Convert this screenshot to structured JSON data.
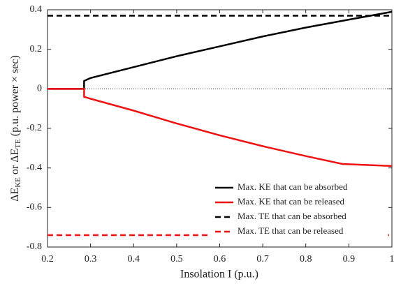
{
  "chart_data": {
    "type": "line",
    "xlabel": "Insolation I (p.u.)",
    "ylabel": [
      "ΔE",
      "KE",
      " or ΔE",
      "TE",
      " (p.u. power × sec)"
    ],
    "xlim": [
      0.2,
      1
    ],
    "ylim": [
      -0.8,
      0.4
    ],
    "xticks": [
      0.2,
      0.3,
      0.4,
      0.5,
      0.6,
      0.7,
      0.8,
      0.9,
      1
    ],
    "yticks": [
      0.4,
      0.2,
      0,
      -0.2,
      -0.4,
      -0.6,
      -0.8
    ],
    "reference_line": {
      "value": 0,
      "style": "dotted"
    },
    "legend": "lower right",
    "series": [
      {
        "name": "Max. KE that can be absorbed",
        "color": "#000000",
        "dash": false,
        "x": [
          0.2,
          0.285,
          0.285,
          0.3,
          0.4,
          0.5,
          0.6,
          0.7,
          0.8,
          0.9,
          1
        ],
        "values": [
          0,
          0,
          0.04,
          0.055,
          0.11,
          0.165,
          0.215,
          0.265,
          0.31,
          0.35,
          0.39
        ]
      },
      {
        "name": "Max. KE that can be released",
        "color": "#ee1111",
        "dash": false,
        "x": [
          0.2,
          0.285,
          0.285,
          0.3,
          0.4,
          0.5,
          0.6,
          0.7,
          0.8,
          0.885,
          1
        ],
        "values": [
          0,
          0,
          -0.04,
          -0.05,
          -0.11,
          -0.175,
          -0.235,
          -0.29,
          -0.34,
          -0.38,
          -0.39
        ]
      },
      {
        "name": "Max. TE that can be absorbed",
        "color": "#000000",
        "dash": true,
        "x": [
          0.2,
          1
        ],
        "values": [
          0.37,
          0.37
        ]
      },
      {
        "name": "Max. TE that can be released",
        "color": "#ee1111",
        "dash": true,
        "x": [
          0.2,
          1
        ],
        "values": [
          -0.74,
          -0.74
        ]
      }
    ]
  }
}
